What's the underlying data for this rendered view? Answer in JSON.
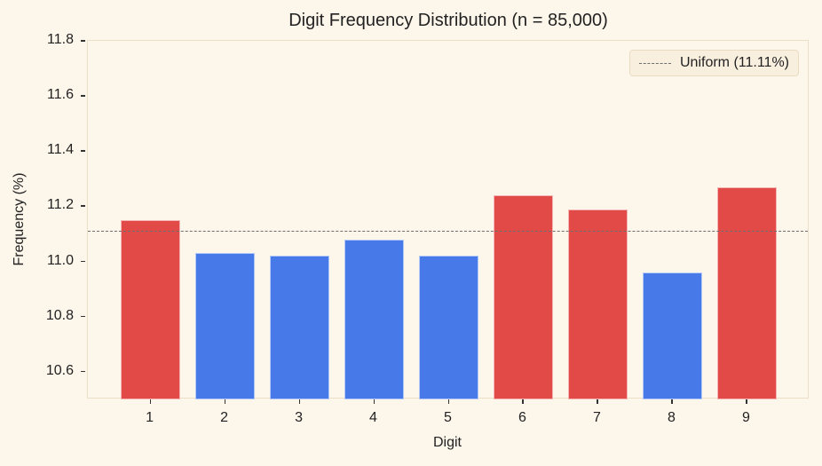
{
  "chart_data": {
    "type": "bar",
    "title": "Digit Frequency Distribution (n = 85,000)",
    "xlabel": "Digit",
    "ylabel": "Frequency (%)",
    "categories": [
      "1",
      "2",
      "3",
      "4",
      "5",
      "6",
      "7",
      "8",
      "9"
    ],
    "values": [
      11.15,
      11.03,
      11.02,
      11.08,
      11.02,
      11.24,
      11.19,
      10.96,
      11.27
    ],
    "bar_colors": [
      "#e24a47",
      "#4879e9",
      "#4879e9",
      "#4879e9",
      "#4879e9",
      "#e24a47",
      "#e24a47",
      "#4879e9",
      "#e24a47"
    ],
    "color_rule": {
      "above_uniform": "#e24a47",
      "below_uniform": "#4879e9"
    },
    "reference_line": {
      "value": 11.11,
      "label": "Uniform (11.11%)",
      "style": "dashed",
      "color": "#6e6e6e"
    },
    "ylim": [
      10.5,
      11.8
    ],
    "xlim": [
      0.16,
      9.84
    ],
    "yticks": [
      "10.6",
      "10.8",
      "11.0",
      "11.2",
      "11.4",
      "11.6",
      "11.8"
    ],
    "grid": false,
    "legend_position": "upper right"
  }
}
